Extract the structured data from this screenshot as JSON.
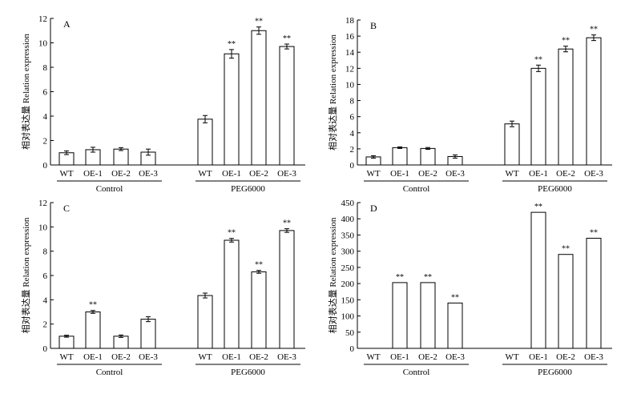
{
  "chart_data": [
    {
      "type": "bar",
      "panel": "A",
      "ylabel": "相对表达量 Relation expression",
      "ylim": [
        0,
        12
      ],
      "yticks": [
        0,
        2,
        4,
        6,
        8,
        10,
        12
      ],
      "categories": [
        "WT",
        "OE-1",
        "OE-2",
        "OE-3",
        "WT",
        "OE-1",
        "OE-2",
        "OE-3"
      ],
      "groups": [
        "Control",
        "PEG6000"
      ],
      "values": [
        1.0,
        1.25,
        1.3,
        1.05,
        3.75,
        9.1,
        11.0,
        9.7
      ],
      "errors": [
        0.15,
        0.2,
        0.12,
        0.25,
        0.3,
        0.35,
        0.3,
        0.2
      ],
      "significance": [
        "",
        "",
        "",
        "",
        "",
        "**",
        "**",
        "**"
      ]
    },
    {
      "type": "bar",
      "panel": "B",
      "ylabel": "相对表达量 Relation expression",
      "ylim": [
        0,
        18
      ],
      "yticks": [
        0,
        2,
        4,
        6,
        8,
        10,
        12,
        14,
        16,
        18
      ],
      "categories": [
        "WT",
        "OE-1",
        "OE-2",
        "OE-3",
        "WT",
        "OE-1",
        "OE-2",
        "OE-3"
      ],
      "groups": [
        "Control",
        "PEG6000"
      ],
      "values": [
        1.0,
        2.15,
        2.05,
        1.05,
        5.1,
        12.0,
        14.4,
        15.8
      ],
      "errors": [
        0.15,
        0.1,
        0.12,
        0.2,
        0.35,
        0.4,
        0.35,
        0.35
      ],
      "significance": [
        "",
        "",
        "",
        "",
        "",
        "**",
        "**",
        "**"
      ]
    },
    {
      "type": "bar",
      "panel": "C",
      "ylabel": "相对表达量 Relation expression",
      "ylim": [
        0,
        12
      ],
      "yticks": [
        0,
        2,
        4,
        6,
        8,
        10,
        12
      ],
      "categories": [
        "WT",
        "OE-1",
        "OE-2",
        "OE-3",
        "WT",
        "OE-1",
        "OE-2",
        "OE-3"
      ],
      "groups": [
        "Control",
        "PEG6000"
      ],
      "values": [
        1.0,
        3.0,
        1.0,
        2.4,
        4.35,
        8.9,
        6.3,
        9.7
      ],
      "errors": [
        0.08,
        0.12,
        0.1,
        0.2,
        0.2,
        0.15,
        0.12,
        0.15
      ],
      "significance": [
        "",
        "**",
        "",
        "",
        "",
        "**",
        "**",
        "**"
      ]
    },
    {
      "type": "bar",
      "panel": "D",
      "ylabel": "相对表达量 Relation expression",
      "ylim": [
        0,
        450
      ],
      "yticks": [
        0,
        50,
        100,
        150,
        200,
        250,
        300,
        350,
        400,
        450
      ],
      "categories": [
        "WT",
        "OE-1",
        "OE-2",
        "OE-3",
        "WT",
        "OE-1",
        "OE-2",
        "OE-3"
      ],
      "groups": [
        "Control",
        "PEG6000"
      ],
      "values": [
        0,
        203,
        203,
        140,
        0,
        420,
        290,
        340
      ],
      "errors": [
        0,
        0,
        0,
        0,
        0,
        0,
        0,
        0
      ],
      "significance": [
        "",
        "**",
        "**",
        "**",
        "",
        "**",
        "**",
        "**"
      ]
    }
  ]
}
